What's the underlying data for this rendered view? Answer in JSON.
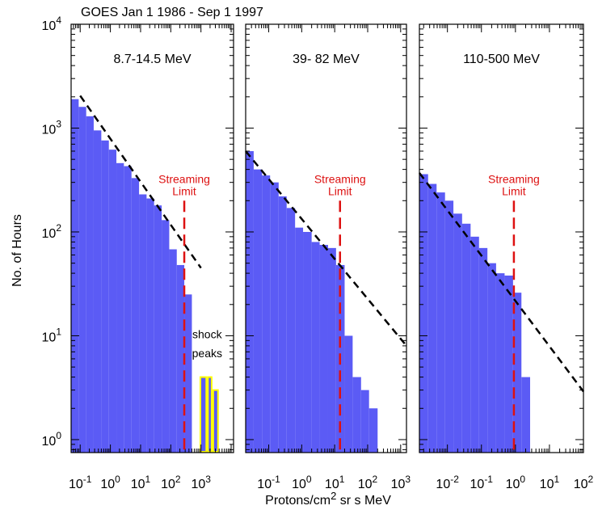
{
  "header": "GOES  Jan 1 1986 - Sep 1 1997",
  "ylabel": "No. of Hours",
  "xlabel": {
    "base": "Protons/cm",
    "sup": "2",
    "rest": " sr s MeV"
  },
  "colors": {
    "bar": "#5b5bf5",
    "fit": "#000000",
    "limit": "#dd1111",
    "shock": "#ffff00"
  },
  "chart_data": [
    {
      "type": "bar",
      "title": "8.7-14.5 MeV",
      "y_scale": "log",
      "ylim": [
        0.75,
        10000
      ],
      "x_scale": "log",
      "xlim": [
        0.05,
        12000
      ],
      "x_ticks": [
        {
          "base": "10",
          "exp": "-1",
          "v": 0.1
        },
        {
          "base": "10",
          "exp": "0",
          "v": 1
        },
        {
          "base": "10",
          "exp": "1",
          "v": 10
        },
        {
          "base": "10",
          "exp": "2",
          "v": 100
        },
        {
          "base": "10",
          "exp": "3",
          "v": 1000
        }
      ],
      "y_ticks": [
        {
          "base": "10",
          "exp": "0",
          "v": 1
        },
        {
          "base": "10",
          "exp": "1",
          "v": 10
        },
        {
          "base": "10",
          "exp": "2",
          "v": 100
        },
        {
          "base": "10",
          "exp": "3",
          "v": 1000
        },
        {
          "base": "10",
          "exp": "4",
          "v": 10000
        }
      ],
      "bins": [
        {
          "x0": 0.05,
          "x1": 0.089,
          "y": 1900
        },
        {
          "x0": 0.089,
          "x1": 0.158,
          "y": 1600
        },
        {
          "x0": 0.158,
          "x1": 0.28,
          "y": 1300
        },
        {
          "x0": 0.28,
          "x1": 0.5,
          "y": 950
        },
        {
          "x0": 0.5,
          "x1": 0.89,
          "y": 760
        },
        {
          "x0": 0.89,
          "x1": 1.58,
          "y": 620
        },
        {
          "x0": 1.58,
          "x1": 2.8,
          "y": 460
        },
        {
          "x0": 2.8,
          "x1": 5.0,
          "y": 430
        },
        {
          "x0": 5.0,
          "x1": 8.9,
          "y": 330
        },
        {
          "x0": 8.9,
          "x1": 15.8,
          "y": 230
        },
        {
          "x0": 15.8,
          "x1": 28,
          "y": 210
        },
        {
          "x0": 28,
          "x1": 50,
          "y": 180
        },
        {
          "x0": 50,
          "x1": 89,
          "y": 130
        },
        {
          "x0": 89,
          "x1": 158,
          "y": 68
        },
        {
          "x0": 158,
          "x1": 280,
          "y": 48
        },
        {
          "x0": 280,
          "x1": 500,
          "y": 25
        }
      ],
      "shock_bins": [
        {
          "x0": 900,
          "x1": 1600,
          "y": 4
        },
        {
          "x0": 1600,
          "x1": 2400,
          "y": 4
        },
        {
          "x0": 2400,
          "x1": 3900,
          "y": 3
        }
      ],
      "fit_line": {
        "p1": [
          0.1,
          2050
        ],
        "p2": [
          1000,
          45
        ]
      },
      "streaming_limit": {
        "x": 280,
        "y_top": 200,
        "y_bottom": 0.75
      },
      "annotations": {
        "limit": [
          "Streaming",
          "Limit"
        ],
        "shock": [
          "shock",
          "peaks"
        ]
      }
    },
    {
      "type": "bar",
      "title": "39- 82 MeV",
      "y_scale": "log",
      "ylim": [
        0.75,
        10000
      ],
      "x_scale": "log",
      "xlim": [
        0.02,
        1500
      ],
      "x_ticks": [
        {
          "base": "10",
          "exp": "-1",
          "v": 0.1
        },
        {
          "base": "10",
          "exp": "0",
          "v": 1
        },
        {
          "base": "10",
          "exp": "1",
          "v": 10
        },
        {
          "base": "10",
          "exp": "2",
          "v": 100
        },
        {
          "base": "10",
          "exp": "3",
          "v": 1000
        }
      ],
      "y_ticks": [
        {
          "v": 1
        },
        {
          "v": 10
        },
        {
          "v": 100
        },
        {
          "v": 1000
        },
        {
          "v": 10000
        }
      ],
      "bins": [
        {
          "x0": 0.02,
          "x1": 0.035,
          "y": 600
        },
        {
          "x0": 0.035,
          "x1": 0.063,
          "y": 400
        },
        {
          "x0": 0.063,
          "x1": 0.11,
          "y": 350
        },
        {
          "x0": 0.11,
          "x1": 0.2,
          "y": 300
        },
        {
          "x0": 0.2,
          "x1": 0.35,
          "y": 220
        },
        {
          "x0": 0.35,
          "x1": 0.63,
          "y": 170
        },
        {
          "x0": 0.63,
          "x1": 1.1,
          "y": 110
        },
        {
          "x0": 1.1,
          "x1": 2.0,
          "y": 100
        },
        {
          "x0": 2.0,
          "x1": 3.5,
          "y": 80
        },
        {
          "x0": 3.5,
          "x1": 6.3,
          "y": 75
        },
        {
          "x0": 6.3,
          "x1": 11,
          "y": 70
        },
        {
          "x0": 11,
          "x1": 20,
          "y": 48
        },
        {
          "x0": 20,
          "x1": 35,
          "y": 10
        },
        {
          "x0": 35,
          "x1": 63,
          "y": 4
        },
        {
          "x0": 63,
          "x1": 110,
          "y": 3
        },
        {
          "x0": 110,
          "x1": 200,
          "y": 2
        }
      ],
      "fit_line": {
        "p1": [
          0.02,
          600
        ],
        "p2": [
          1500,
          8
        ]
      },
      "streaming_limit": {
        "x": 14.5,
        "y_top": 200,
        "y_bottom": 0.75
      },
      "annotations": {
        "limit": [
          "Streaming",
          "Limit"
        ]
      }
    },
    {
      "type": "bar",
      "title": "110-500 MeV",
      "y_scale": "log",
      "ylim": [
        0.75,
        10000
      ],
      "x_scale": "log",
      "xlim": [
        0.0015,
        100
      ],
      "x_ticks": [
        {
          "base": "10",
          "exp": "-2",
          "v": 0.01
        },
        {
          "base": "10",
          "exp": "-1",
          "v": 0.1
        },
        {
          "base": "10",
          "exp": "0",
          "v": 1
        },
        {
          "base": "10",
          "exp": "1",
          "v": 10
        },
        {
          "base": "10",
          "exp": "2",
          "v": 100
        }
      ],
      "y_ticks": [
        {
          "v": 1
        },
        {
          "v": 10
        },
        {
          "v": 100
        },
        {
          "v": 1000
        },
        {
          "v": 10000
        }
      ],
      "bins": [
        {
          "x0": 0.0015,
          "x1": 0.0027,
          "y": 360
        },
        {
          "x0": 0.0027,
          "x1": 0.0048,
          "y": 290
        },
        {
          "x0": 0.0048,
          "x1": 0.0085,
          "y": 240
        },
        {
          "x0": 0.0085,
          "x1": 0.015,
          "y": 200
        },
        {
          "x0": 0.015,
          "x1": 0.027,
          "y": 150
        },
        {
          "x0": 0.027,
          "x1": 0.048,
          "y": 120
        },
        {
          "x0": 0.048,
          "x1": 0.085,
          "y": 90
        },
        {
          "x0": 0.085,
          "x1": 0.15,
          "y": 70
        },
        {
          "x0": 0.15,
          "x1": 0.27,
          "y": 50
        },
        {
          "x0": 0.27,
          "x1": 0.48,
          "y": 40
        },
        {
          "x0": 0.48,
          "x1": 0.85,
          "y": 38
        },
        {
          "x0": 0.85,
          "x1": 1.5,
          "y": 26
        },
        {
          "x0": 1.5,
          "x1": 2.7,
          "y": 4
        }
      ],
      "fit_line": {
        "p1": [
          0.0015,
          370
        ],
        "p2": [
          100,
          2.9
        ]
      },
      "streaming_limit": {
        "x": 0.9,
        "y_top": 200,
        "y_bottom": 0.75
      },
      "annotations": {
        "limit": [
          "Streaming",
          "Limit"
        ]
      }
    }
  ]
}
